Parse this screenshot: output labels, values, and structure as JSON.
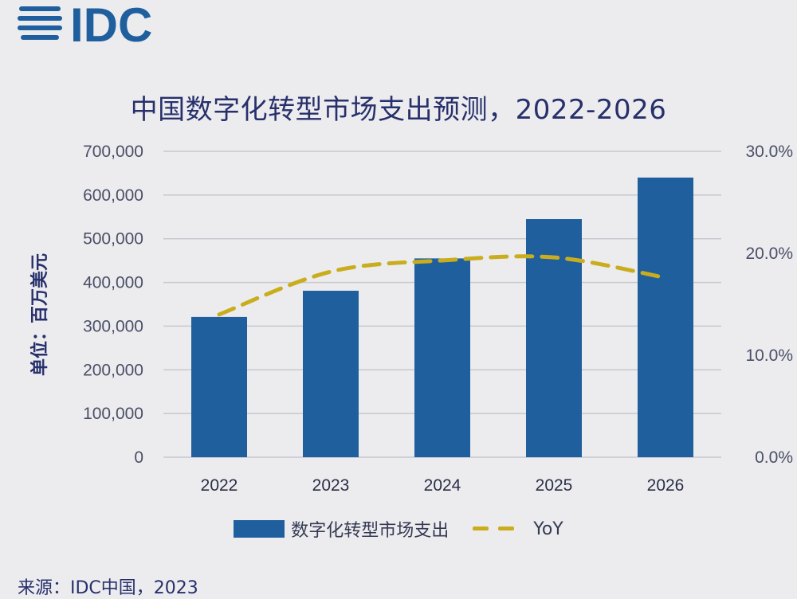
{
  "logo_text": "IDC",
  "title": "中国数字化转型市场支出预测，2022-2026",
  "source": "来源：IDC中国，2023",
  "colors": {
    "bar": "#1f5f9e",
    "line": "#c9ad1d",
    "title": "#27306b",
    "grid": "#c7c8cf"
  },
  "chart_data": {
    "type": "bar",
    "title": "中国数字化转型市场支出预测，2022-2026",
    "ylabel": "单位：百万美元",
    "xlabel": "",
    "categories": [
      "2022",
      "2023",
      "2024",
      "2025",
      "2026"
    ],
    "ylim": [
      0,
      700000
    ],
    "y2lim": [
      0,
      30
    ],
    "yticks": [
      "0",
      "100,000",
      "200,000",
      "300,000",
      "400,000",
      "500,000",
      "600,000",
      "700,000"
    ],
    "y2ticks": [
      "0.0%",
      "10.0%",
      "20.0%",
      "30.0%"
    ],
    "series": [
      {
        "name": "数字化转型市场支出",
        "type": "bar",
        "axis": "left",
        "values": [
          321000,
          381000,
          455000,
          545000,
          640000
        ]
      },
      {
        "name": "YoY",
        "type": "line",
        "style": "dashed",
        "axis": "right",
        "values": [
          14.0,
          18.2,
          19.3,
          19.6,
          17.6
        ]
      }
    ],
    "grid": true,
    "legend": "bottom-center"
  }
}
